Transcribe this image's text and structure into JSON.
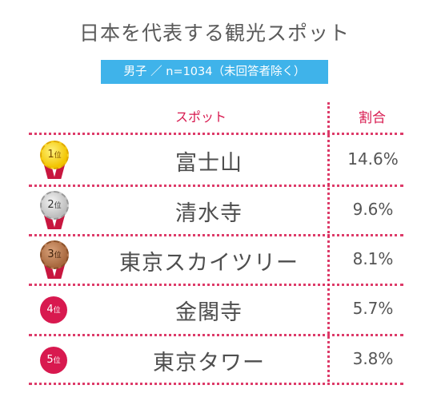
{
  "title": "日本を代表する観光スポット",
  "subtitle": "男子 ／ n=1034（未回答者除く）",
  "headers": {
    "spot": "スポット",
    "ratio": "割合"
  },
  "rows": [
    {
      "rank_num": "1",
      "rank_suffix": "位",
      "name": "富士山",
      "percent": "14.6%",
      "medal": "gold"
    },
    {
      "rank_num": "2",
      "rank_suffix": "位",
      "name": "清水寺",
      "percent": "9.6%",
      "medal": "silver"
    },
    {
      "rank_num": "3",
      "rank_suffix": "位",
      "name": "東京スカイツリー",
      "percent": "8.1%",
      "medal": "bronze"
    },
    {
      "rank_num": "4",
      "rank_suffix": "位",
      "name": "金閣寺",
      "percent": "5.7%",
      "medal": "red"
    },
    {
      "rank_num": "5",
      "rank_suffix": "位",
      "name": "東京タワー",
      "percent": "3.8%",
      "medal": "red"
    }
  ],
  "colors": {
    "accent": "#d8194f",
    "subtitle_bg": "#3fb3ea",
    "text": "#555555"
  }
}
